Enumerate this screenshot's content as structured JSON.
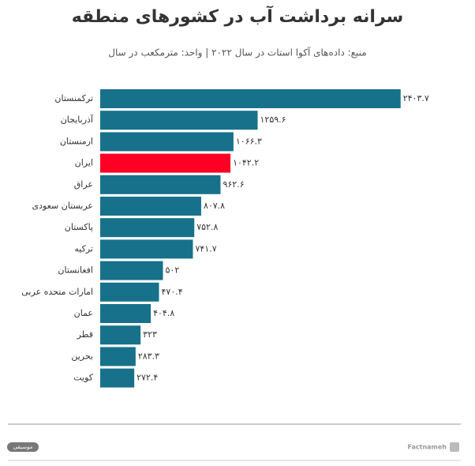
{
  "chart_data": {
    "type": "hbar",
    "title": "سرانه برداشت آب در کشورهای منطقه",
    "subtitle": "منبع: داده‌های آکوا استات در سال ۲۰۲۲ | واحد: مترمکعب در سال",
    "categories": [
      "ترکمنستان",
      "آذربایجان",
      "ارمنستان",
      "ایران",
      "عراق",
      "عربستان سعودی",
      "پاکستان",
      "ترکیه",
      "افغانستان",
      "امارات متحده عربی",
      "عمان",
      "قطر",
      "بحرین",
      "کویت"
    ],
    "values": [
      2403.7,
      1259.6,
      1066.3,
      1042.2,
      962.6,
      807.8,
      752.8,
      741.7,
      502,
      470.4,
      404.8,
      323,
      283.3,
      272.4
    ],
    "value_labels": [
      "۲۴۰۳.۷",
      "۱۲۵۹.۶",
      "۱۰۶۶.۳",
      "۱۰۴۲.۲",
      "۹۶۲.۶",
      "۸۰۷.۸",
      "۷۵۲.۸",
      "۷۴۱.۷",
      "۵۰۲",
      "۴۷۰.۴",
      "۴۰۴.۸",
      "۳۲۳",
      "۲۸۳.۳",
      "۲۷۲.۴"
    ],
    "colors": [
      "#17718a",
      "#17718a",
      "#17718a",
      "#ff0025",
      "#17718a",
      "#17718a",
      "#17718a",
      "#17718a",
      "#17718a",
      "#17718a",
      "#17718a",
      "#17718a",
      "#17718a",
      "#17718a"
    ],
    "xlim": [
      0,
      2500
    ],
    "source_brand": "Factnameh",
    "badge": "موسیقی"
  }
}
